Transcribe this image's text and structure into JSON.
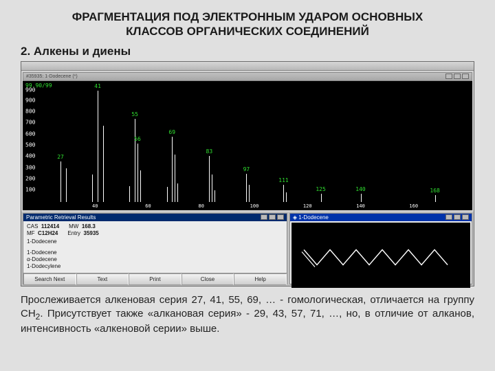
{
  "title_line1": "ФРАГМЕНТАЦИЯ ПОД ЭЛЕКТРОННЫМ УДАРОМ ОСНОВНЫХ",
  "title_line2": "КЛАССОВ ОРГАНИЧЕСКИХ СОЕДИНЕНИЙ",
  "subtitle": "2. Алкены и диены",
  "spectrum": {
    "window_title": "#35935: 1-Dodecene (*)",
    "corner_label": "99.90/99",
    "bg": "#000000",
    "line_color": "#ffffff",
    "label_color": "#30e030",
    "yaxis": {
      "ticks": [
        100,
        200,
        300,
        400,
        500,
        600,
        700,
        800,
        900,
        990
      ],
      "min": 0,
      "max": 1000,
      "fontsize": 8
    },
    "xaxis": {
      "min": 20,
      "max": 180,
      "ticks": [
        40,
        60,
        80,
        100,
        120,
        140,
        160
      ]
    },
    "peaks": [
      {
        "mz": 27,
        "intensity": 360,
        "label": "27"
      },
      {
        "mz": 29,
        "intensity": 300,
        "label": ""
      },
      {
        "mz": 39,
        "intensity": 240,
        "label": ""
      },
      {
        "mz": 41,
        "intensity": 990,
        "label": "41"
      },
      {
        "mz": 43,
        "intensity": 680,
        "label": ""
      },
      {
        "mz": 53,
        "intensity": 140,
        "label": ""
      },
      {
        "mz": 55,
        "intensity": 740,
        "label": "55"
      },
      {
        "mz": 56,
        "intensity": 520,
        "label": "56"
      },
      {
        "mz": 57,
        "intensity": 280,
        "label": ""
      },
      {
        "mz": 67,
        "intensity": 130,
        "label": ""
      },
      {
        "mz": 69,
        "intensity": 580,
        "label": "69"
      },
      {
        "mz": 70,
        "intensity": 420,
        "label": ""
      },
      {
        "mz": 71,
        "intensity": 160,
        "label": ""
      },
      {
        "mz": 83,
        "intensity": 410,
        "label": "83"
      },
      {
        "mz": 84,
        "intensity": 240,
        "label": ""
      },
      {
        "mz": 85,
        "intensity": 100,
        "label": ""
      },
      {
        "mz": 97,
        "intensity": 250,
        "label": "97"
      },
      {
        "mz": 98,
        "intensity": 150,
        "label": ""
      },
      {
        "mz": 111,
        "intensity": 150,
        "label": "111"
      },
      {
        "mz": 112,
        "intensity": 80,
        "label": ""
      },
      {
        "mz": 125,
        "intensity": 70,
        "label": "125"
      },
      {
        "mz": 140,
        "intensity": 70,
        "label": "140"
      },
      {
        "mz": 168,
        "intensity": 60,
        "label": "168"
      }
    ]
  },
  "results": {
    "header": "Parametric Retrieval Results",
    "cas_label": "CAS",
    "cas": "112414",
    "mw_label": "MW",
    "mw": "168.3",
    "date_label": "MF",
    "date": "C12H24",
    "entry_label": "Entry",
    "entry": "35935",
    "name": "1-Dodecene",
    "synonyms": [
      "1-Dodecene",
      "α-Dodecene",
      "1-Dodecylene"
    ],
    "buttons": [
      "Search Next",
      "Text",
      "Print",
      "Close",
      "Help"
    ]
  },
  "structure": {
    "header": "1-Dodecene",
    "chain_points": 12,
    "line_color": "#ffffff"
  },
  "caption": {
    "t1": "Прослеживается алкеновая серия 27, 41, 55, 69, … - гомологическая, отличается на группу CH",
    "t_sub": "2",
    "t2": ". Присутствует также «алкановая серия» - 29, 43, 57, 71, …, но, в отличие от алканов, интенсивность «алкеновой серии» выше."
  }
}
